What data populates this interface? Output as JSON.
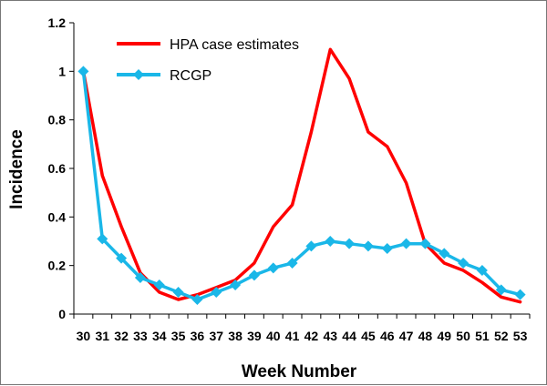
{
  "chart_data": {
    "type": "line",
    "xlabel": "Week Number",
    "ylabel": "Incidence",
    "x": [
      30,
      31,
      32,
      33,
      34,
      35,
      36,
      37,
      38,
      39,
      40,
      41,
      42,
      43,
      44,
      45,
      46,
      47,
      48,
      49,
      50,
      51,
      52,
      53
    ],
    "x_tick_labels": [
      "30",
      "31",
      "32",
      "33",
      "34",
      "35",
      "36",
      "37",
      "38",
      "39",
      "40",
      "41",
      "42",
      "43",
      "44",
      "45",
      "46",
      "47",
      "48",
      "49",
      "50",
      "51",
      "52",
      "53"
    ],
    "y_tick_labels": [
      "0",
      "0.2",
      "0.4",
      "0.6",
      "0.8",
      "1",
      "1.2"
    ],
    "ylim": [
      0,
      1.2
    ],
    "grid": false,
    "legend_position": "top-left",
    "series": [
      {
        "name": "HPA case estimates",
        "color": "#ff0000",
        "marker": "none",
        "values": [
          1.0,
          0.57,
          0.36,
          0.17,
          0.09,
          0.06,
          0.08,
          0.11,
          0.14,
          0.21,
          0.36,
          0.45,
          0.75,
          1.09,
          0.97,
          0.75,
          0.69,
          0.54,
          0.29,
          0.21,
          0.18,
          0.13,
          0.07,
          0.05
        ]
      },
      {
        "name": "RCGP",
        "color": "#1ab7e8",
        "marker": "diamond",
        "values": [
          1.0,
          0.31,
          0.23,
          0.15,
          0.12,
          0.09,
          0.06,
          0.09,
          0.12,
          0.16,
          0.19,
          0.21,
          0.28,
          0.3,
          0.29,
          0.28,
          0.27,
          0.29,
          0.29,
          0.25,
          0.21,
          0.18,
          0.1,
          0.08
        ]
      }
    ]
  }
}
